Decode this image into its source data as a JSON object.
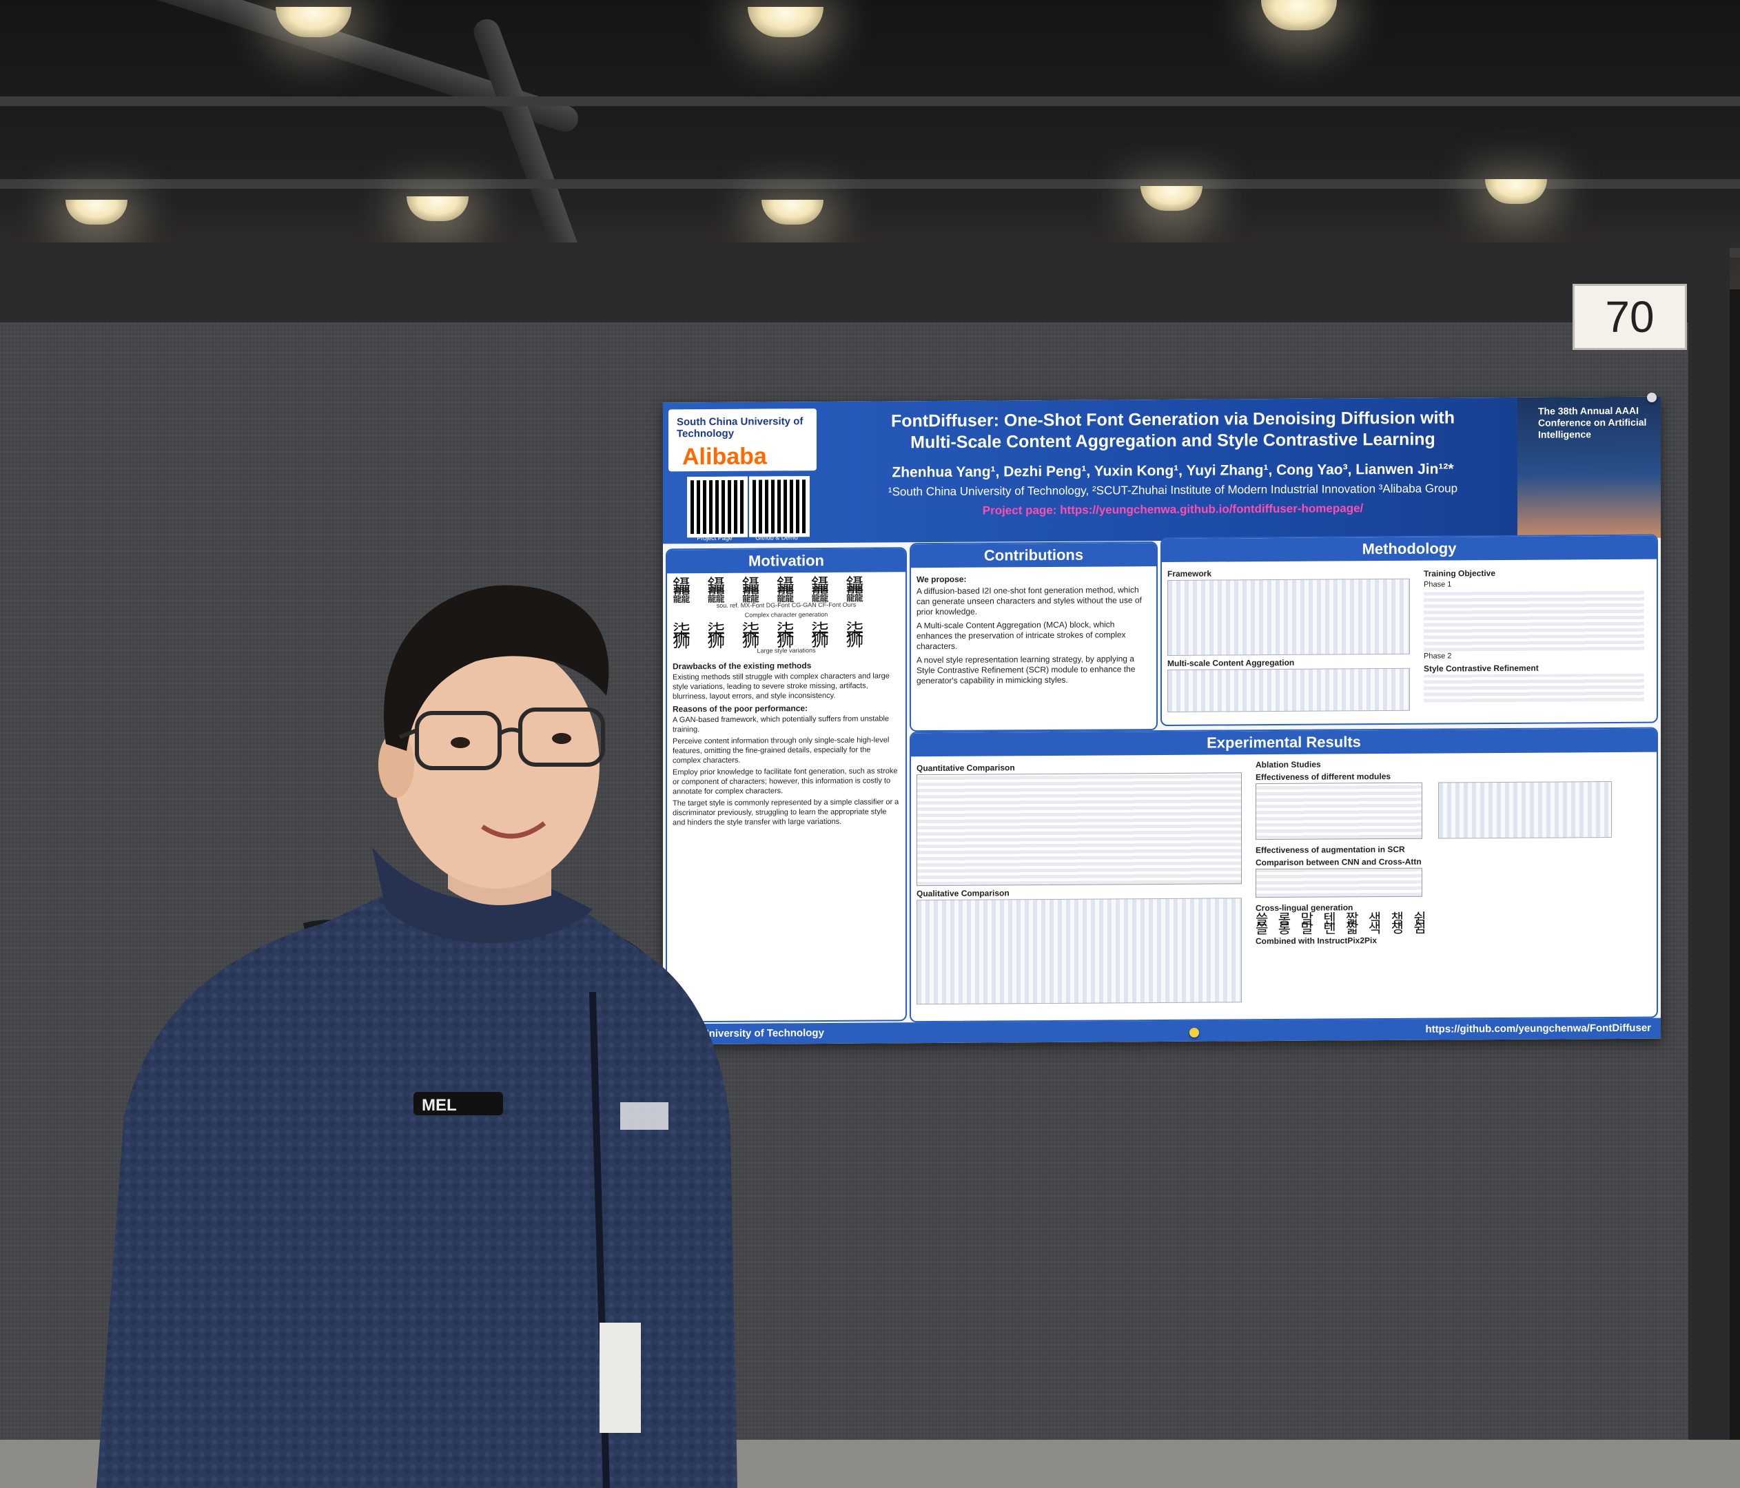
{
  "booth": {
    "number": "70"
  },
  "poster": {
    "logo_university": "South China University of Technology",
    "logo_company": "Alibaba",
    "qr_labels": [
      "Project Page",
      "Github & Demo"
    ],
    "title_line1": "FontDiffuser: One-Shot Font Generation via Denoising Diffusion with",
    "title_line2": "Multi-Scale Content Aggregation and Style Contrastive Learning",
    "authors": "Zhenhua Yang¹, Dezhi Peng¹, Yuxin Kong¹, Yuyi Zhang¹, Cong Yao³, Lianwen Jin¹²*",
    "affiliations": "¹South China University of Technology, ²SCUT-Zhuhai Institute of Modern Industrial Innovation ³Alibaba Group",
    "project_page": "Project page: https://yeungchenwa.github.io/fontdiffuser-homepage/",
    "conference": "The 38th Annual AAAI Conference on Artificial Intelligence",
    "motivation": {
      "heading": "Motivation",
      "caption1": "Complex character generation",
      "caption2": "Large style variations",
      "col_labels": "sou.   ref.   MX-Font DG-Font CG-GAN  CF-Font  Ours",
      "drawbacks_title": "Drawbacks of the existing methods",
      "drawbacks_text": "Existing methods still struggle with complex characters and large style variations, leading to severe stroke missing, artifacts, blurriness, layout errors, and style inconsistency.",
      "reasons_title": "Reasons of the poor performance:",
      "reasons": [
        "A GAN-based framework, which potentially suffers from unstable training.",
        "Perceive content information through only single-scale high-level features, omitting the fine-grained details, especially for the complex characters.",
        "Employ prior knowledge to facilitate font generation, such as stroke or component of characters; however, this information is costly to annotate for complex characters.",
        "The target style is commonly represented by a simple classifier or a discriminator previously, struggling to learn the appropriate style and hinders the style transfer with large variations."
      ]
    },
    "contributions": {
      "heading": "Contributions",
      "intro": "We propose:",
      "items": [
        "A diffusion-based I2I one-shot font generation method, which can generate unseen characters and styles without the use of prior knowledge.",
        "A Multi-scale Content Aggregation (MCA) block, which enhances the preservation of intricate strokes of complex characters.",
        "A novel style representation learning strategy, by applying a Style Contrastive Refinement (SCR) module to enhance the generator's capability in mimicking styles."
      ]
    },
    "methodology": {
      "heading": "Methodology",
      "framework": "Framework",
      "mca": "Multi-scale Content Aggregation",
      "training": "Training Objective",
      "phase1": "Phase 1",
      "phase2": "Phase 2",
      "scr": "Style Contrastive Refinement"
    },
    "results": {
      "heading": "Experimental Results",
      "quant": "Quantitative Comparison",
      "qual": "Qualitative Comparison",
      "ablation": "Ablation Studies",
      "effect_modules": "Effectiveness of different modules",
      "effect_aug": "Effectiveness of augmentation in SCR",
      "cnn_vs_attn": "Comparison between CNN and Cross-Attn",
      "cross_lingual": "Cross-lingual generation",
      "instructpix": "Combined with InstructPix2Pix"
    },
    "footer_left": "China University of Technology",
    "footer_right": "https://github.com/yeungchenwa/FontDiffuser"
  },
  "jacket_text": "MEL"
}
